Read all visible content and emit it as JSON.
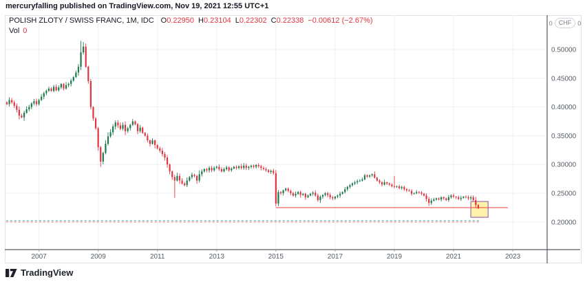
{
  "header": {
    "published_line": "mercuryfalling published on TradingView.com, Nov 19, 2021 12:55 UTC+1"
  },
  "legend": {
    "symbol_title": "POLISH ZLOTY / SWISS FRANC, 1M, IDC",
    "open_letter": "O",
    "open_value": "0.22950",
    "high_letter": "H",
    "high_value": "0.23104",
    "low_letter": "L",
    "low_value": "0.22302",
    "close_letter": "C",
    "close_value": "0.22338",
    "change_value": "−0.00612 (−2.67%)",
    "volume_label": "Vol",
    "volume_value": "0"
  },
  "price_axis": {
    "currency_left": "0",
    "currency": "CHF",
    "currency_right": "0",
    "ticks": [
      0.5,
      0.45,
      0.4,
      0.35,
      0.3,
      0.25,
      0.2
    ]
  },
  "time_axis": {
    "ticks": [
      2007,
      2009,
      2011,
      2013,
      2015,
      2017,
      2019,
      2021,
      2023
    ]
  },
  "footer": {
    "brand": "TradingView"
  },
  "colors": {
    "up_candle": "#1d7a4c",
    "down_candle": "#e0353f",
    "legend_value_red": "#e0353f",
    "text_dark": "#131722",
    "axis_text": "#555d66",
    "axis_line": "#555962",
    "grid": "#eceff5",
    "panel_border": "#e0e3eb",
    "support_line": "#ef5350",
    "alert_line_teal": "#26a69a",
    "alert_line_red": "#ef5350",
    "box_fill": "rgba(255,235,125,0.65)",
    "box_border": "#a06ba5"
  },
  "chart_data": {
    "type": "candlestick",
    "title": "POLISH ZLOTY / SWISS FRANC",
    "interval": "1M",
    "exchange": "IDC",
    "start_month": "2005-10",
    "end_month": "2021-11",
    "ylim_visible": [
      0.152,
      0.558
    ],
    "grid": true,
    "last_bar": {
      "open": 0.2295,
      "high": 0.23104,
      "low": 0.22302,
      "close": 0.22338,
      "change": -0.00612,
      "change_pct": -2.67
    },
    "monthly_closes": [
      0.402,
      0.408,
      0.405,
      0.412,
      0.408,
      0.402,
      0.395,
      0.385,
      0.382,
      0.39,
      0.396,
      0.4,
      0.406,
      0.41,
      0.405,
      0.412,
      0.418,
      0.424,
      0.428,
      0.432,
      0.428,
      0.435,
      0.429,
      0.434,
      0.44,
      0.432,
      0.438,
      0.44,
      0.446,
      0.452,
      0.46,
      0.47,
      0.495,
      0.505,
      0.47,
      0.445,
      0.4,
      0.38,
      0.363,
      0.33,
      0.305,
      0.32,
      0.336,
      0.349,
      0.356,
      0.366,
      0.373,
      0.368,
      0.362,
      0.369,
      0.358,
      0.363,
      0.369,
      0.375,
      0.37,
      0.358,
      0.364,
      0.355,
      0.35,
      0.342,
      0.336,
      0.342,
      0.334,
      0.328,
      0.324,
      0.318,
      0.312,
      0.3,
      0.288,
      0.278,
      0.272,
      0.28,
      0.272,
      0.267,
      0.264,
      0.272,
      0.278,
      0.282,
      0.28,
      0.272,
      0.283,
      0.288,
      0.292,
      0.29,
      0.294,
      0.29,
      0.294,
      0.296,
      0.292,
      0.288,
      0.292,
      0.295,
      0.29,
      0.293,
      0.296,
      0.294,
      0.297,
      0.294,
      0.298,
      0.294,
      0.296,
      0.298,
      0.296,
      0.299,
      0.297,
      0.294,
      0.292,
      0.29,
      0.287,
      0.289,
      0.285,
      0.232,
      0.252,
      0.25,
      0.255,
      0.258,
      0.254,
      0.25,
      0.246,
      0.249,
      0.252,
      0.247,
      0.249,
      0.243,
      0.246,
      0.249,
      0.251,
      0.246,
      0.238,
      0.244,
      0.247,
      0.25,
      0.247,
      0.243,
      0.241,
      0.244,
      0.246,
      0.249,
      0.252,
      0.257,
      0.261,
      0.264,
      0.267,
      0.269,
      0.271,
      0.272,
      0.274,
      0.281,
      0.279,
      0.281,
      0.283,
      0.277,
      0.272,
      0.269,
      0.265,
      0.269,
      0.267,
      0.265,
      0.262,
      0.261,
      0.262,
      0.259,
      0.261,
      0.257,
      0.255,
      0.254,
      0.249,
      0.25,
      0.252,
      0.251,
      0.249,
      0.246,
      0.24,
      0.233,
      0.237,
      0.239,
      0.241,
      0.239,
      0.243,
      0.241,
      0.238,
      0.243,
      0.246,
      0.244,
      0.243,
      0.24,
      0.242,
      0.244,
      0.243,
      0.241,
      0.243,
      0.238,
      0.2295,
      0.22338
    ],
    "bar_overrides": {
      "32": {
        "high": 0.515
      },
      "33": {
        "high": 0.513
      },
      "40": {
        "low": 0.296
      },
      "70": {
        "low": 0.242
      },
      "111": {
        "low": 0.227
      },
      "128": {
        "low": 0.235
      },
      "159": {
        "high": 0.28
      },
      "173": {
        "low": 0.228
      },
      "193": {
        "open": 0.2295,
        "high": 0.23104,
        "low": 0.22302
      }
    },
    "drawings": {
      "support_line": {
        "price": 0.225,
        "from_index": 111,
        "to_index": 205
      },
      "breakout_box": {
        "from_index": 190,
        "to_index": 197,
        "top_price": 0.2356,
        "bottom_price": 0.2081
      },
      "alert_lines": [
        {
          "price": 0.2025,
          "color_key": "alert_line_teal",
          "from_index": 0,
          "to_index": 194
        },
        {
          "price": 0.2,
          "color_key": "alert_line_red",
          "from_index": 0,
          "to_index": 194
        }
      ]
    }
  }
}
